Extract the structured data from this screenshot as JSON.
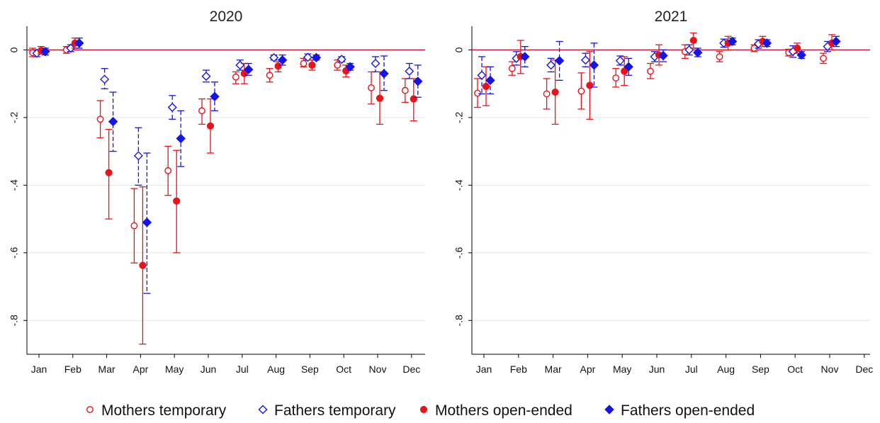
{
  "colors": {
    "mothers": "#e8141a",
    "fathers": "#1414e8",
    "zero_line": "#c8102e",
    "grid": "#e6e6e6",
    "axis": "#000000"
  },
  "legend": [
    {
      "label": "Mothers temporary",
      "marker": "hollow-circle",
      "color": "#e8141a"
    },
    {
      "label": "Fathers temporary",
      "marker": "hollow-diamond",
      "color": "#1414e8"
    },
    {
      "label": "Mothers open-ended",
      "marker": "filled-circle",
      "color": "#e8141a"
    },
    {
      "label": "Fathers open-ended",
      "marker": "filled-diamond",
      "color": "#1414e8"
    }
  ],
  "chart_data": [
    {
      "type": "scatter",
      "title": "2020",
      "categories": [
        "Jan",
        "Feb",
        "Mar",
        "Apr",
        "May",
        "Jun",
        "Jul",
        "Aug",
        "Sep",
        "Oct",
        "Nov",
        "Dec"
      ],
      "ylim": [
        -0.9,
        0.07
      ],
      "yticks": [
        0,
        -0.2,
        -0.4,
        -0.6,
        -0.8
      ],
      "ytick_labels": [
        "0",
        "-.2",
        "-.4",
        "-.6",
        "-.8"
      ],
      "grid": true,
      "series": [
        {
          "name": "Mothers temporary",
          "values": [
            -0.008,
            0.0,
            -0.205,
            -0.52,
            -0.357,
            -0.18,
            -0.08,
            -0.075,
            -0.04,
            -0.045,
            -0.112,
            -0.12
          ],
          "lower": [
            -0.02,
            -0.01,
            -0.26,
            -0.63,
            -0.43,
            -0.22,
            -0.1,
            -0.095,
            -0.05,
            -0.06,
            -0.16,
            -0.155
          ],
          "upper": [
            0.005,
            0.01,
            -0.15,
            -0.41,
            -0.285,
            -0.145,
            -0.065,
            -0.055,
            -0.025,
            -0.03,
            -0.065,
            -0.085
          ]
        },
        {
          "name": "Fathers temporary",
          "values": [
            -0.01,
            0.005,
            -0.087,
            -0.313,
            -0.17,
            -0.078,
            -0.045,
            -0.023,
            -0.022,
            -0.028,
            -0.04,
            -0.063
          ],
          "lower": [
            -0.02,
            -0.005,
            -0.115,
            -0.4,
            -0.205,
            -0.095,
            -0.06,
            -0.03,
            -0.03,
            -0.035,
            -0.065,
            -0.085
          ],
          "upper": [
            0.0,
            0.015,
            -0.055,
            -0.23,
            -0.135,
            -0.06,
            -0.03,
            -0.015,
            -0.012,
            -0.02,
            -0.02,
            -0.04
          ]
        },
        {
          "name": "Mothers open-ended",
          "values": [
            -0.002,
            0.02,
            -0.363,
            -0.637,
            -0.447,
            -0.225,
            -0.07,
            -0.048,
            -0.045,
            -0.062,
            -0.143,
            -0.145
          ],
          "lower": [
            -0.012,
            0.005,
            -0.5,
            -0.87,
            -0.6,
            -0.305,
            -0.1,
            -0.065,
            -0.06,
            -0.08,
            -0.22,
            -0.21
          ],
          "upper": [
            0.01,
            0.035,
            -0.235,
            -0.405,
            -0.297,
            -0.145,
            -0.04,
            -0.035,
            -0.03,
            -0.045,
            -0.065,
            -0.085
          ]
        },
        {
          "name": "Fathers open-ended",
          "values": [
            -0.005,
            0.02,
            -0.212,
            -0.51,
            -0.262,
            -0.138,
            -0.058,
            -0.03,
            -0.023,
            -0.05,
            -0.07,
            -0.093
          ],
          "lower": [
            -0.015,
            0.005,
            -0.3,
            -0.72,
            -0.345,
            -0.18,
            -0.075,
            -0.045,
            -0.03,
            -0.06,
            -0.12,
            -0.14
          ],
          "upper": [
            0.005,
            0.035,
            -0.125,
            -0.305,
            -0.18,
            -0.095,
            -0.04,
            -0.015,
            -0.015,
            -0.04,
            -0.018,
            -0.045
          ]
        }
      ]
    },
    {
      "type": "scatter",
      "title": "2021",
      "categories": [
        "Jan",
        "Feb",
        "Mar",
        "Apr",
        "May",
        "Jun",
        "Jul",
        "Aug",
        "Sep",
        "Oct",
        "Nov",
        "Dec"
      ],
      "ylim": [
        -0.9,
        0.07
      ],
      "yticks": [
        0,
        -0.2,
        -0.4,
        -0.6,
        -0.8
      ],
      "ytick_labels": [
        "0",
        "-.2",
        "-.4",
        "-.6",
        "-.8"
      ],
      "grid": true,
      "series": [
        {
          "name": "Mothers temporary",
          "values": [
            -0.128,
            -0.055,
            -0.13,
            -0.122,
            -0.083,
            -0.063,
            -0.005,
            -0.02,
            0.005,
            -0.008,
            -0.025,
            null
          ],
          "lower": [
            -0.17,
            -0.075,
            -0.175,
            -0.175,
            -0.11,
            -0.085,
            -0.025,
            -0.035,
            -0.005,
            -0.018,
            -0.04,
            null
          ],
          "upper": [
            -0.085,
            -0.035,
            -0.085,
            -0.068,
            -0.055,
            -0.04,
            0.015,
            -0.005,
            0.015,
            0.002,
            -0.01,
            null
          ]
        },
        {
          "name": "Fathers temporary",
          "values": [
            -0.075,
            -0.025,
            -0.045,
            -0.03,
            -0.032,
            -0.02,
            0.0,
            0.02,
            0.018,
            -0.005,
            0.01,
            null
          ],
          "lower": [
            -0.13,
            -0.045,
            -0.065,
            -0.05,
            -0.045,
            -0.035,
            -0.015,
            0.008,
            0.005,
            -0.022,
            -0.005,
            null
          ],
          "upper": [
            -0.02,
            -0.005,
            -0.025,
            -0.01,
            -0.018,
            -0.005,
            0.015,
            0.032,
            0.03,
            0.012,
            0.025,
            null
          ]
        },
        {
          "name": "Mothers open-ended",
          "values": [
            -0.108,
            -0.02,
            -0.125,
            -0.105,
            -0.063,
            -0.015,
            0.028,
            0.02,
            0.025,
            0.005,
            0.02,
            null
          ],
          "lower": [
            -0.165,
            -0.07,
            -0.22,
            -0.205,
            -0.105,
            -0.045,
            0.005,
            0.0,
            0.01,
            -0.01,
            0.0,
            null
          ],
          "upper": [
            -0.05,
            0.028,
            -0.03,
            -0.005,
            -0.02,
            0.015,
            0.05,
            0.04,
            0.04,
            0.02,
            0.045,
            null
          ]
        },
        {
          "name": "Fathers open-ended",
          "values": [
            -0.09,
            -0.02,
            -0.032,
            -0.045,
            -0.05,
            -0.017,
            -0.008,
            0.025,
            0.02,
            -0.015,
            0.025,
            null
          ],
          "lower": [
            -0.13,
            -0.05,
            -0.09,
            -0.11,
            -0.075,
            -0.035,
            -0.02,
            0.015,
            0.01,
            -0.025,
            0.01,
            null
          ],
          "upper": [
            -0.05,
            0.01,
            0.025,
            0.02,
            -0.025,
            0.0,
            0.005,
            0.035,
            0.03,
            -0.005,
            0.04,
            null
          ]
        }
      ]
    }
  ]
}
